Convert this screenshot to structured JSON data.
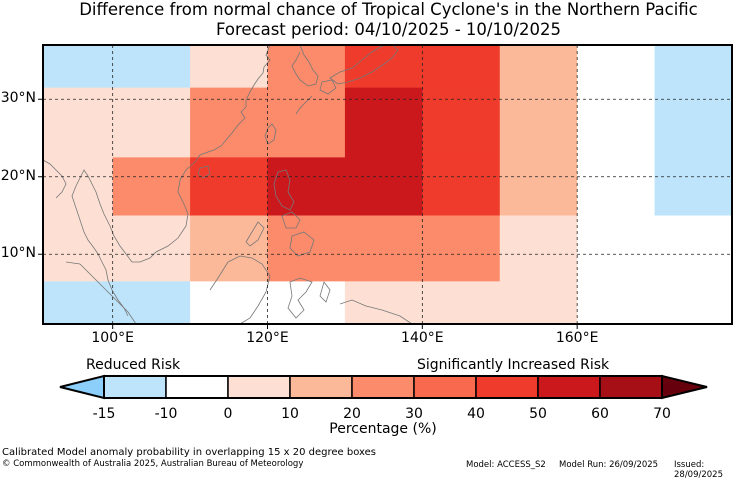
{
  "titles": {
    "line1": "Difference from normal chance of Tropical Cyclone's in the Northern Pacific",
    "line2": "Forecast period: 04/10/2025 - 10/10/2025"
  },
  "map": {
    "lon_range": [
      91,
      180
    ],
    "lat_range": [
      1,
      37
    ],
    "lat_labels": [
      {
        "lat": 30,
        "text": "30°N"
      },
      {
        "lat": 20,
        "text": "20°N"
      },
      {
        "lat": 10,
        "text": "10°N"
      }
    ],
    "lon_labels": [
      {
        "lon": 100,
        "text": "100°E"
      },
      {
        "lon": 120,
        "text": "120°E"
      },
      {
        "lon": 140,
        "text": "140°E"
      },
      {
        "lon": 160,
        "text": "160°E"
      }
    ],
    "cells": [
      {
        "lon": [
          91,
          110
        ],
        "lat": [
          31.5,
          37
        ],
        "pct": -12
      },
      {
        "lon": [
          110,
          120
        ],
        "lat": [
          31.5,
          37
        ],
        "pct": 5
      },
      {
        "lon": [
          120,
          130
        ],
        "lat": [
          31.5,
          37
        ],
        "pct": 25
      },
      {
        "lon": [
          130,
          140
        ],
        "lat": [
          31.5,
          37
        ],
        "pct": 45
      },
      {
        "lon": [
          140,
          150
        ],
        "lat": [
          31.5,
          37
        ],
        "pct": 45
      },
      {
        "lon": [
          150,
          160
        ],
        "lat": [
          31.5,
          37
        ],
        "pct": 15
      },
      {
        "lon": [
          160,
          170
        ],
        "lat": [
          31.5,
          37
        ],
        "pct": -8
      },
      {
        "lon": [
          170,
          180
        ],
        "lat": [
          31.5,
          37
        ],
        "pct": -12
      },
      {
        "lon": [
          91,
          100
        ],
        "lat": [
          22.5,
          31.5
        ],
        "pct": 0
      },
      {
        "lon": [
          100,
          110
        ],
        "lat": [
          22.5,
          31.5
        ],
        "pct": 5
      },
      {
        "lon": [
          110,
          130
        ],
        "lat": [
          22.5,
          31.5
        ],
        "pct": 25
      },
      {
        "lon": [
          130,
          140
        ],
        "lat": [
          22.5,
          31.5
        ],
        "pct": 55
      },
      {
        "lon": [
          140,
          150
        ],
        "lat": [
          22.5,
          31.5
        ],
        "pct": 45
      },
      {
        "lon": [
          150,
          160
        ],
        "lat": [
          22.5,
          31.5
        ],
        "pct": 15
      },
      {
        "lon": [
          160,
          170
        ],
        "lat": [
          22.5,
          31.5
        ],
        "pct": -8
      },
      {
        "lon": [
          170,
          180
        ],
        "lat": [
          22.5,
          31.5
        ],
        "pct": -12
      },
      {
        "lon": [
          91,
          100
        ],
        "lat": [
          15,
          22.5
        ],
        "pct": 5
      },
      {
        "lon": [
          100,
          110
        ],
        "lat": [
          15,
          22.5
        ],
        "pct": 25
      },
      {
        "lon": [
          110,
          120
        ],
        "lat": [
          15,
          22.5
        ],
        "pct": 45
      },
      {
        "lon": [
          120,
          140
        ],
        "lat": [
          15,
          22.5
        ],
        "pct": 55
      },
      {
        "lon": [
          140,
          150
        ],
        "lat": [
          15,
          22.5
        ],
        "pct": 45
      },
      {
        "lon": [
          150,
          160
        ],
        "lat": [
          15,
          22.5
        ],
        "pct": 15
      },
      {
        "lon": [
          160,
          170
        ],
        "lat": [
          15,
          22.5
        ],
        "pct": -8
      },
      {
        "lon": [
          170,
          180
        ],
        "lat": [
          15,
          22.5
        ],
        "pct": -12
      },
      {
        "lon": [
          91,
          100
        ],
        "lat": [
          6.5,
          15
        ],
        "pct": 0
      },
      {
        "lon": [
          100,
          110
        ],
        "lat": [
          6.5,
          15
        ],
        "pct": 5
      },
      {
        "lon": [
          110,
          120
        ],
        "lat": [
          6.5,
          15
        ],
        "pct": 15
      },
      {
        "lon": [
          120,
          150
        ],
        "lat": [
          6.5,
          15
        ],
        "pct": 25
      },
      {
        "lon": [
          150,
          160
        ],
        "lat": [
          6.5,
          15
        ],
        "pct": 5
      },
      {
        "lon": [
          160,
          180
        ],
        "lat": [
          6.5,
          15
        ],
        "pct": -8
      },
      {
        "lon": [
          91,
          110
        ],
        "lat": [
          1,
          6.5
        ],
        "pct": -12
      },
      {
        "lon": [
          110,
          130
        ],
        "lat": [
          1,
          6.5
        ],
        "pct": -8
      },
      {
        "lon": [
          130,
          140
        ],
        "lat": [
          1,
          6.5
        ],
        "pct": 0
      },
      {
        "lon": [
          140,
          150
        ],
        "lat": [
          1,
          6.5
        ],
        "pct": 5
      },
      {
        "lon": [
          150,
          160
        ],
        "lat": [
          1,
          6.5
        ],
        "pct": 0
      },
      {
        "lon": [
          160,
          180
        ],
        "lat": [
          1,
          6.5
        ],
        "pct": -8
      }
    ]
  },
  "colorbar": {
    "left_label": "Reduced Risk",
    "right_label": "Significantly Increased Risk",
    "title": "Percentage (%)",
    "ticks": [
      "-15",
      "-10",
      "0",
      "10",
      "20",
      "30",
      "40",
      "50",
      "60",
      "70"
    ],
    "colors": {
      "under": "#8dcffb",
      "bin_m15_m10": "#bee4fb",
      "bin_m10_0": "#ffffff",
      "bin_0_10": "#fde0d3",
      "bin_10_20": "#fcb99a",
      "bin_20_30": "#fb8b6b",
      "bin_30_40": "#f8694e",
      "bin_40_50": "#ef3b2c",
      "bin_50_60": "#cb181d",
      "bin_60_70": "#a50f15",
      "over": "#67000d"
    }
  },
  "footer": {
    "note": "Calibrated Model anomaly probability in overlapping 15 x 20 degree boxes",
    "copyright": "© Commonwealth of Australia 2025, Australian Bureau of Meteorology",
    "model": "Model: ACCESS_S2",
    "run": "Model Run: 26/09/2025",
    "issued": "Issued: 28/09/2025"
  }
}
